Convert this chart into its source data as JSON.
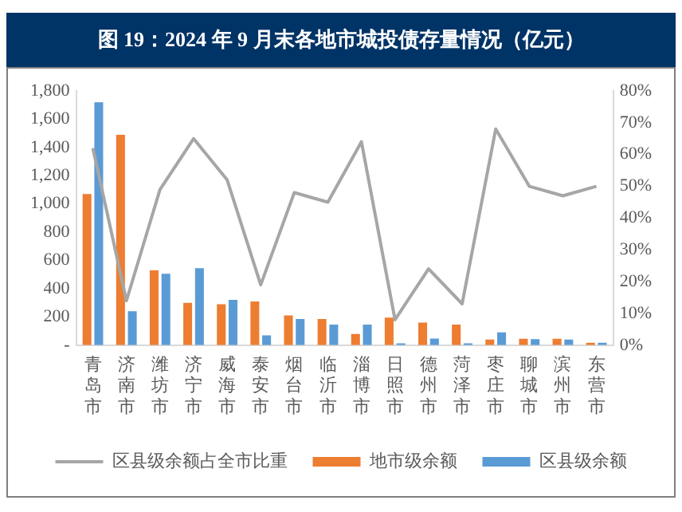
{
  "chart_data": {
    "type": "bar",
    "title": "图 19：2024 年 9 月末各地市城投债存量情况（亿元）",
    "categories": [
      "青岛市",
      "济南市",
      "潍坊市",
      "济宁市",
      "威海市",
      "泰安市",
      "烟台市",
      "临沂市",
      "淄博市",
      "日照市",
      "德州市",
      "菏泽市",
      "枣庄市",
      "聊城市",
      "滨州市",
      "东营市"
    ],
    "series": [
      {
        "name": "地市级余额",
        "color": "#ed7d31",
        "values": [
          1070,
          1490,
          530,
          300,
          290,
          310,
          210,
          185,
          80,
          195,
          160,
          145,
          40,
          45,
          45,
          17
        ]
      },
      {
        "name": "区县级余额",
        "color": "#5b9bd5",
        "values": [
          1720,
          240,
          505,
          545,
          320,
          70,
          185,
          145,
          145,
          13,
          47,
          13,
          90,
          43,
          40,
          17
        ]
      },
      {
        "name": "区县级余额占全市比重",
        "type": "line",
        "axis": "y2",
        "color": "#a6a6a6",
        "values": [
          62,
          14,
          49,
          65,
          52,
          19,
          48,
          45,
          64,
          8,
          24,
          13,
          68,
          50,
          47,
          50
        ]
      }
    ],
    "ylim": [
      0,
      1800
    ],
    "yticks": [
      {
        "value": 0,
        "label": "-"
      },
      {
        "value": 200,
        "label": "200"
      },
      {
        "value": 400,
        "label": "400"
      },
      {
        "value": 600,
        "label": "600"
      },
      {
        "value": 800,
        "label": "800"
      },
      {
        "value": 1000,
        "label": "1,000"
      },
      {
        "value": 1200,
        "label": "1,200"
      },
      {
        "value": 1400,
        "label": "1,400"
      },
      {
        "value": 1600,
        "label": "1,600"
      },
      {
        "value": 1800,
        "label": "1,800"
      }
    ],
    "y2lim": [
      0,
      80
    ],
    "y2ticks": [
      {
        "value": 0,
        "label": "0%"
      },
      {
        "value": 10,
        "label": "10%"
      },
      {
        "value": 20,
        "label": "20%"
      },
      {
        "value": 30,
        "label": "30%"
      },
      {
        "value": 40,
        "label": "40%"
      },
      {
        "value": 50,
        "label": "50%"
      },
      {
        "value": 60,
        "label": "60%"
      },
      {
        "value": 70,
        "label": "70%"
      },
      {
        "value": 80,
        "label": "80%"
      }
    ],
    "grid": false,
    "legend": "bottom",
    "marker": "none",
    "line_style": "solid"
  }
}
